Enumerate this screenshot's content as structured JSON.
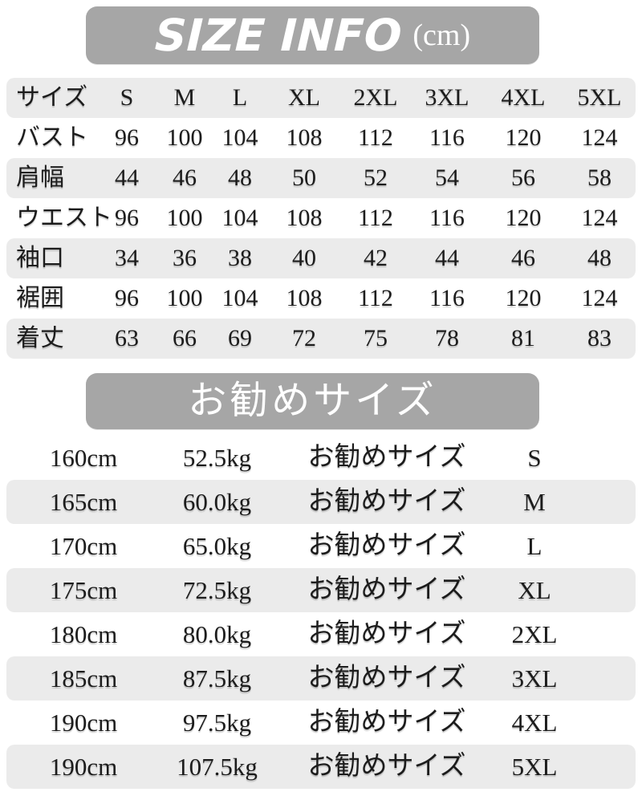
{
  "header": {
    "title": "SIZE INFO",
    "unit": "(cm)"
  },
  "colors": {
    "banner_bg": "#a6a6a6",
    "stripe_bg": "#ebebeb",
    "text": "#1c1c1c",
    "banner_text": "#ffffff"
  },
  "size_table": {
    "columns": [
      "サイズ",
      "S",
      "M",
      "L",
      "XL",
      "2XL",
      "3XL",
      "4XL",
      "5XL"
    ],
    "rows": [
      {
        "label": "バスト",
        "values": [
          96,
          100,
          104,
          108,
          112,
          116,
          120,
          124
        ]
      },
      {
        "label": "肩幅",
        "values": [
          44,
          46,
          48,
          50,
          52,
          54,
          56,
          58
        ]
      },
      {
        "label": "ウエスト",
        "values": [
          96,
          100,
          104,
          108,
          112,
          116,
          120,
          124
        ]
      },
      {
        "label": "袖口",
        "values": [
          34,
          36,
          38,
          40,
          42,
          44,
          46,
          48
        ]
      },
      {
        "label": "裾囲",
        "values": [
          96,
          100,
          104,
          108,
          112,
          116,
          120,
          124
        ]
      },
      {
        "label": "着丈",
        "values": [
          63,
          66,
          69,
          72,
          75,
          78,
          81,
          83
        ]
      }
    ]
  },
  "recommend": {
    "banner": "お勧めサイズ",
    "label": "お勧めサイズ",
    "rows": [
      {
        "height": "160cm",
        "weight": "52.5kg",
        "size": "S"
      },
      {
        "height": "165cm",
        "weight": "60.0kg",
        "size": "M"
      },
      {
        "height": "170cm",
        "weight": "65.0kg",
        "size": "L"
      },
      {
        "height": "175cm",
        "weight": "72.5kg",
        "size": "XL"
      },
      {
        "height": "180cm",
        "weight": "80.0kg",
        "size": "2XL"
      },
      {
        "height": "185cm",
        "weight": "87.5kg",
        "size": "3XL"
      },
      {
        "height": "190cm",
        "weight": "97.5kg",
        "size": "4XL"
      },
      {
        "height": "190cm",
        "weight": "107.5kg",
        "size": "5XL"
      }
    ]
  },
  "chart_data": [
    {
      "type": "table",
      "title": "SIZE INFO (cm)",
      "columns": [
        "サイズ",
        "S",
        "M",
        "L",
        "XL",
        "2XL",
        "3XL",
        "4XL",
        "5XL"
      ],
      "rows": [
        [
          "バスト",
          96,
          100,
          104,
          108,
          112,
          116,
          120,
          124
        ],
        [
          "肩幅",
          44,
          46,
          48,
          50,
          52,
          54,
          56,
          58
        ],
        [
          "ウエスト",
          96,
          100,
          104,
          108,
          112,
          116,
          120,
          124
        ],
        [
          "袖口",
          34,
          36,
          38,
          40,
          42,
          44,
          46,
          48
        ],
        [
          "裾囲",
          96,
          100,
          104,
          108,
          112,
          116,
          120,
          124
        ],
        [
          "着丈",
          63,
          66,
          69,
          72,
          75,
          78,
          81,
          83
        ]
      ]
    },
    {
      "type": "table",
      "title": "お勧めサイズ",
      "rows": [
        [
          "160cm",
          "52.5kg",
          "お勧めサイズ",
          "S"
        ],
        [
          "165cm",
          "60.0kg",
          "お勧めサイズ",
          "M"
        ],
        [
          "170cm",
          "65.0kg",
          "お勧めサイズ",
          "L"
        ],
        [
          "175cm",
          "72.5kg",
          "お勧めサイズ",
          "XL"
        ],
        [
          "180cm",
          "80.0kg",
          "お勧めサイズ",
          "2XL"
        ],
        [
          "185cm",
          "87.5kg",
          "お勧めサイズ",
          "3XL"
        ],
        [
          "190cm",
          "97.5kg",
          "お勧めサイズ",
          "4XL"
        ],
        [
          "190cm",
          "107.5kg",
          "お勧めサイズ",
          "5XL"
        ]
      ]
    }
  ]
}
